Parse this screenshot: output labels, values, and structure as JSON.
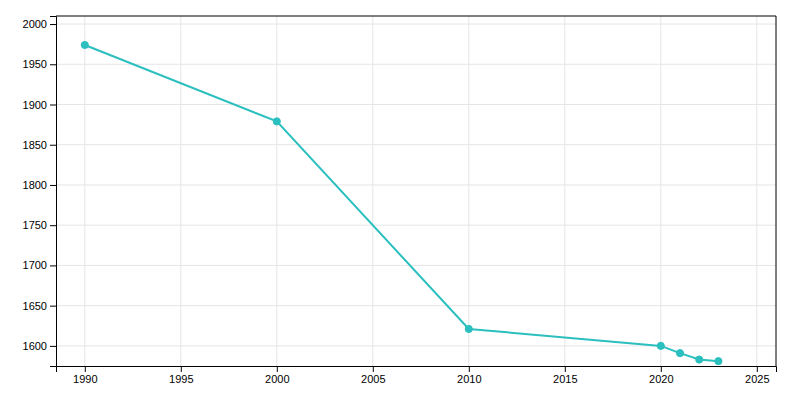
{
  "chart_data": {
    "type": "line",
    "x": [
      1990,
      2000,
      2010,
      2020,
      2021,
      2022,
      2023
    ],
    "values": [
      1974,
      1879,
      1621,
      1600,
      1591,
      1583,
      1581
    ],
    "color": "#2bbfbf",
    "marker": "circle",
    "xlim": [
      1988.5,
      2026
    ],
    "ylim": [
      1575,
      2010
    ],
    "xticks": [
      1990,
      1995,
      2000,
      2005,
      2010,
      2015,
      2020,
      2025
    ],
    "yticks": [
      1600,
      1650,
      1700,
      1750,
      1800,
      1850,
      1900,
      1950,
      2000
    ],
    "grid": true
  }
}
